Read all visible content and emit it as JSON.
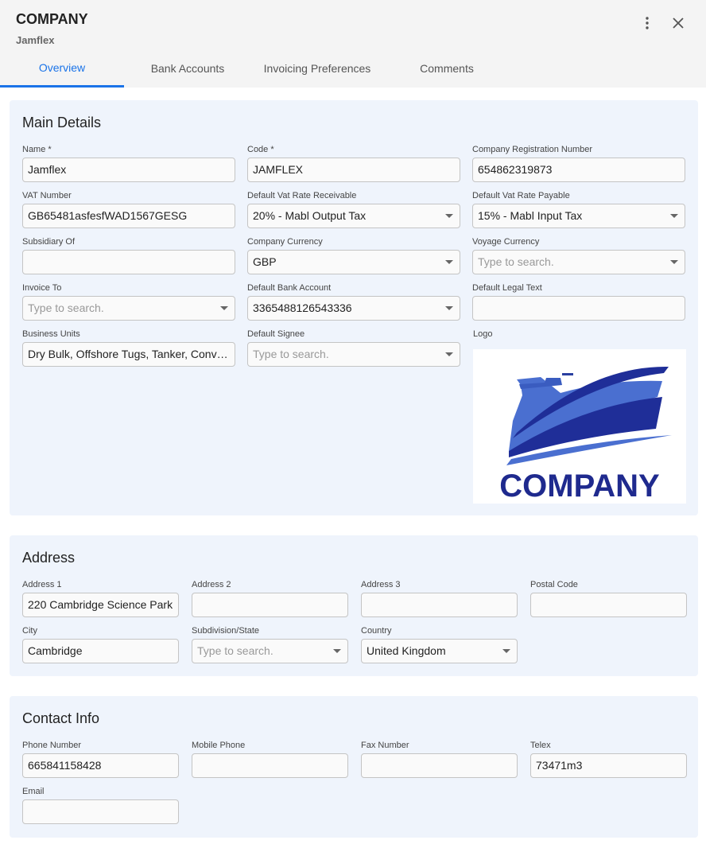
{
  "header": {
    "title": "COMPANY",
    "subtitle": "Jamflex",
    "more_icon": "more-vert-icon",
    "close_icon": "close-icon"
  },
  "tabs": [
    {
      "label": "Overview",
      "active": true
    },
    {
      "label": "Bank Accounts"
    },
    {
      "label": "Invoicing Preferences"
    },
    {
      "label": "Comments"
    }
  ],
  "accent": "#1a73e8",
  "main": {
    "title": "Main Details",
    "fields": [
      {
        "label": "Name *",
        "value": "Jamflex"
      },
      {
        "label": "Code *",
        "value": "JAMFLEX"
      },
      {
        "label": "Company Registration Number",
        "value": "654862319873"
      },
      {
        "label": "VAT Number",
        "value": "GB65481asfesfWAD1567GESG"
      },
      {
        "label": "Default Vat Rate Receivable",
        "value": "20% - Mabl Output Tax",
        "select": true
      },
      {
        "label": "Default Vat Rate Payable",
        "value": "15% - Mabl Input Tax",
        "select": true
      },
      {
        "label": "Subsidiary Of",
        "value": ""
      },
      {
        "label": "Company Currency",
        "value": "GBP",
        "select": true
      },
      {
        "label": "Voyage Currency",
        "placeholder": "Type to search.",
        "select": true
      },
      {
        "label": "Invoice To",
        "placeholder": "Type to search.",
        "select": true
      },
      {
        "label": "Default Bank Account",
        "value": "3365488126543336",
        "select": true
      },
      {
        "label": "Default Legal Text",
        "value": ""
      },
      {
        "label": "Business Units",
        "value": "Dry Bulk, Offshore Tugs, Tanker, Conventional"
      },
      {
        "label": "Default Signee",
        "placeholder": "Type to search.",
        "select": true
      }
    ],
    "logo_label": "Logo",
    "logo_text": "COMPANY"
  },
  "address": {
    "title": "Address",
    "fields": [
      {
        "label": "Address 1",
        "value": "220 Cambridge Science Park"
      },
      {
        "label": "Address 2",
        "value": ""
      },
      {
        "label": "Address 3",
        "value": ""
      },
      {
        "label": "Postal Code",
        "value": ""
      },
      {
        "label": "City",
        "value": "Cambridge"
      },
      {
        "label": "Subdivision/State",
        "placeholder": "Type to search.",
        "select": true
      },
      {
        "label": "Country",
        "value": "United Kingdom",
        "select": true
      }
    ]
  },
  "contact": {
    "title": "Contact Info",
    "fields": [
      {
        "label": "Phone Number",
        "value": "665841158428"
      },
      {
        "label": "Mobile Phone",
        "value": ""
      },
      {
        "label": "Fax Number",
        "value": ""
      },
      {
        "label": "Telex",
        "value": "73471m3"
      },
      {
        "label": "Email",
        "value": ""
      }
    ]
  }
}
